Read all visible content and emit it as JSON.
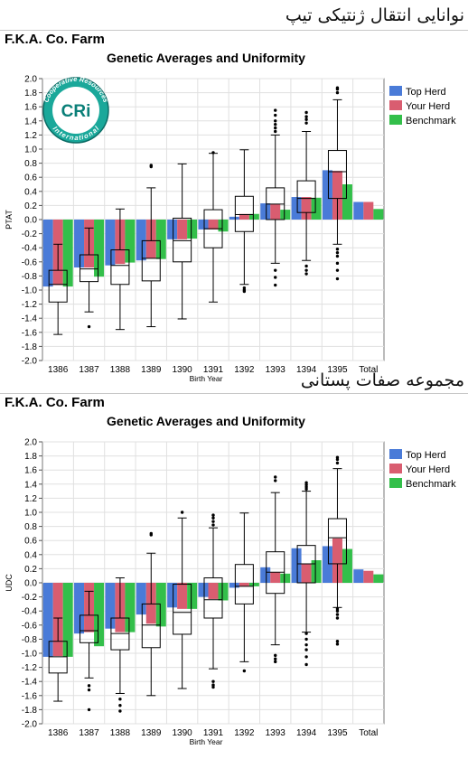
{
  "headings": [
    "نوانایی انتقال ژنتیکی تیپ",
    "مجموعه صفات پستانی"
  ],
  "farm_title": "F.K.A. Co. Farm",
  "logo": {
    "ring_top": "Cooperative Resources",
    "ring_bottom": "International",
    "mark": "CRi",
    "colors": {
      "ring": "#1aa89a",
      "center": "#0a7f78"
    }
  },
  "colors": {
    "top_herd": "#4a7bd8",
    "your_herd": "#d95d70",
    "benchmark": "#33bf4a"
  },
  "chart_data": [
    {
      "type": "bar",
      "title": "Genetic Averages and Uniformity",
      "xlabel": "Birth Year",
      "ylabel": "PTAT",
      "ylim": [
        -2.0,
        2.0
      ],
      "yticks": [
        "2.0",
        "1.8",
        "1.6",
        "1.4",
        "1.2",
        "1.0",
        "0.8",
        "0.6",
        "0.4",
        "0.2",
        "0.0",
        "-0.2",
        "-0.4",
        "-0.6",
        "-0.8",
        "-1.0",
        "-1.2",
        "-1.4",
        "-1.6",
        "-1.8",
        "-2.0"
      ],
      "categories": [
        "1386",
        "1387",
        "1388",
        "1389",
        "1390",
        "1391",
        "1392",
        "1393",
        "1394",
        "1395",
        "Total"
      ],
      "legend": [
        "Top Herd",
        "Your Herd",
        "Benchmark"
      ],
      "grid": true,
      "legend_position": "right",
      "series": [
        {
          "name": "Top Herd",
          "values": [
            -0.95,
            -0.68,
            -0.65,
            -0.58,
            -0.28,
            -0.14,
            0.04,
            0.23,
            0.32,
            0.7,
            0.25
          ]
        },
        {
          "name": "Your Herd",
          "values": [
            -0.93,
            -0.68,
            -0.63,
            -0.55,
            -0.28,
            -0.14,
            0.08,
            0.22,
            0.32,
            0.69,
            0.25
          ]
        },
        {
          "name": "Benchmark",
          "values": [
            -0.95,
            -0.81,
            -0.61,
            -0.56,
            -0.27,
            -0.17,
            0.08,
            0.14,
            0.31,
            0.5,
            0.15
          ]
        }
      ],
      "boxes": [
        {
          "min": -1.63,
          "q1": -1.17,
          "median": -0.92,
          "q3": -0.72,
          "max": -0.35,
          "outliers": []
        },
        {
          "min": -1.31,
          "q1": -0.88,
          "median": -0.7,
          "q3": -0.5,
          "max": -0.12,
          "outliers": [
            -1.52
          ]
        },
        {
          "min": -1.56,
          "q1": -0.92,
          "median": -0.65,
          "q3": -0.43,
          "max": 0.15,
          "outliers": []
        },
        {
          "min": -1.52,
          "q1": -0.87,
          "median": -0.55,
          "q3": -0.3,
          "max": 0.45,
          "outliers": [
            0.75,
            0.77
          ]
        },
        {
          "min": -1.41,
          "q1": -0.6,
          "median": -0.3,
          "q3": 0.02,
          "max": 0.79,
          "outliers": []
        },
        {
          "min": -1.17,
          "q1": -0.4,
          "median": -0.13,
          "q3": 0.14,
          "max": 0.94,
          "outliers": [
            0.95
          ]
        },
        {
          "min": -0.92,
          "q1": -0.17,
          "median": 0.07,
          "q3": 0.33,
          "max": 0.99,
          "outliers": [
            -0.97,
            -1.0,
            -1.02
          ]
        },
        {
          "min": -0.62,
          "q1": 0.0,
          "median": 0.22,
          "q3": 0.45,
          "max": 1.2,
          "outliers": [
            1.25,
            1.3,
            1.35,
            1.4,
            1.48,
            1.55,
            -0.72,
            -0.82,
            -0.93
          ]
        },
        {
          "min": -0.58,
          "q1": 0.1,
          "median": 0.3,
          "q3": 0.55,
          "max": 1.25,
          "outliers": [
            1.37,
            1.42,
            1.46,
            1.52,
            -0.66,
            -0.72,
            -0.77
          ]
        },
        {
          "min": -0.35,
          "q1": 0.3,
          "median": 0.68,
          "q3": 0.98,
          "max": 1.7,
          "outliers": [
            1.8,
            1.85,
            1.87,
            -0.42,
            -0.47,
            -0.52,
            -0.62,
            -0.72,
            -0.84
          ]
        }
      ]
    },
    {
      "type": "bar",
      "title": "Genetic Averages and Uniformity",
      "xlabel": "Birth Year",
      "ylabel": "UDC",
      "ylim": [
        -2.0,
        2.0
      ],
      "yticks": [
        "2.0",
        "1.8",
        "1.6",
        "1.4",
        "1.2",
        "1.0",
        "0.8",
        "0.6",
        "0.4",
        "0.2",
        "0.0",
        "-0.2",
        "-0.4",
        "-0.6",
        "-0.8",
        "-1.0",
        "-1.2",
        "-1.4",
        "-1.6",
        "-1.8",
        "-2.0"
      ],
      "categories": [
        "1386",
        "1387",
        "1388",
        "1389",
        "1390",
        "1391",
        "1392",
        "1393",
        "1394",
        "1395",
        "Total"
      ],
      "legend": [
        "Top Herd",
        "Your Herd",
        "Benchmark"
      ],
      "grid": true,
      "legend_position": "right",
      "series": [
        {
          "name": "Top Herd",
          "values": [
            -1.05,
            -0.72,
            -0.65,
            -0.45,
            -0.35,
            -0.2,
            -0.07,
            0.22,
            0.49,
            0.52,
            0.19
          ]
        },
        {
          "name": "Your Herd",
          "values": [
            -1.04,
            -0.7,
            -0.7,
            -0.58,
            -0.37,
            -0.23,
            -0.05,
            0.15,
            0.27,
            0.63,
            0.17
          ]
        },
        {
          "name": "Benchmark",
          "values": [
            -1.05,
            -0.9,
            -0.7,
            -0.62,
            -0.37,
            -0.25,
            -0.05,
            0.13,
            0.32,
            0.48,
            0.12
          ]
        }
      ],
      "boxes": [
        {
          "min": -1.68,
          "q1": -1.28,
          "median": -1.05,
          "q3": -0.83,
          "max": -0.5,
          "outliers": []
        },
        {
          "min": -1.35,
          "q1": -0.85,
          "median": -0.68,
          "q3": -0.46,
          "max": -0.12,
          "outliers": [
            -1.46,
            -1.52,
            -1.8
          ]
        },
        {
          "min": -1.57,
          "q1": -0.95,
          "median": -0.72,
          "q3": -0.5,
          "max": 0.07,
          "outliers": [
            -1.65,
            -1.74,
            -1.82
          ]
        },
        {
          "min": -1.6,
          "q1": -0.92,
          "median": -0.6,
          "q3": -0.3,
          "max": 0.42,
          "outliers": [
            0.68,
            0.7
          ]
        },
        {
          "min": -1.5,
          "q1": -0.73,
          "median": -0.42,
          "q3": -0.02,
          "max": 0.92,
          "outliers": [
            1.0
          ]
        },
        {
          "min": -1.22,
          "q1": -0.5,
          "median": -0.24,
          "q3": 0.07,
          "max": 0.78,
          "outliers": [
            0.82,
            0.87,
            0.92,
            0.96,
            -1.4,
            -1.45,
            -1.48
          ]
        },
        {
          "min": -1.12,
          "q1": -0.3,
          "median": -0.05,
          "q3": 0.26,
          "max": 0.99,
          "outliers": [
            -1.25
          ]
        },
        {
          "min": -0.88,
          "q1": -0.15,
          "median": 0.15,
          "q3": 0.44,
          "max": 1.28,
          "outliers": [
            1.45,
            1.5,
            -1.03,
            -1.08,
            -1.12
          ]
        },
        {
          "min": -0.7,
          "q1": 0.0,
          "median": 0.27,
          "q3": 0.53,
          "max": 1.3,
          "outliers": [
            1.33,
            1.36,
            1.39,
            1.42,
            -0.72,
            -0.8,
            -0.88,
            -0.95,
            -1.05,
            -1.16
          ]
        },
        {
          "min": -0.35,
          "q1": 0.27,
          "median": 0.64,
          "q3": 0.91,
          "max": 1.62,
          "outliers": [
            1.7,
            1.75,
            1.78,
            -0.37,
            -0.4,
            -0.45,
            -0.5,
            -0.83,
            -0.87
          ]
        }
      ]
    }
  ]
}
